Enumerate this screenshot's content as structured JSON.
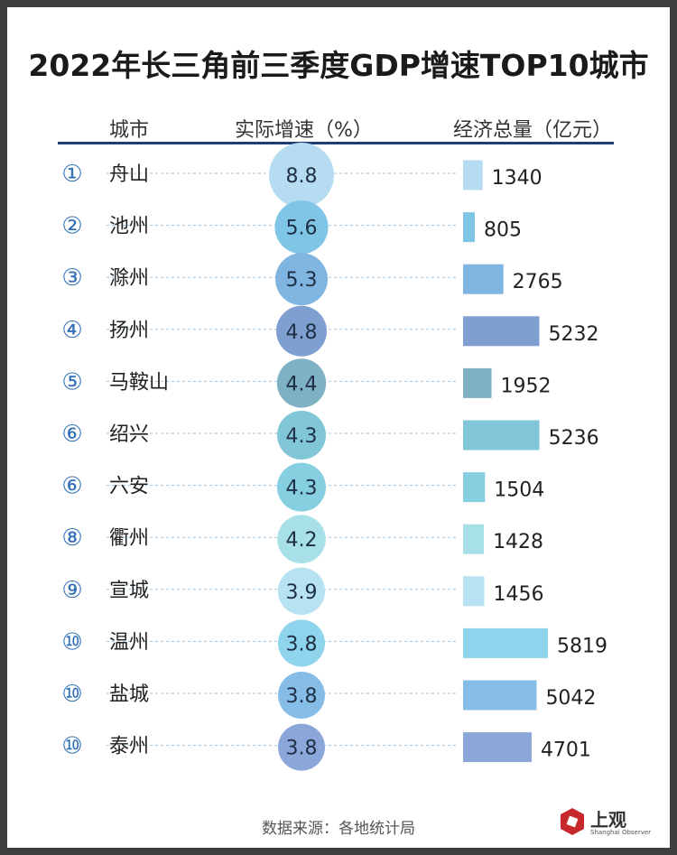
{
  "title": "2022年长三角前三季度GDP增速TOP10城市",
  "headers": {
    "city": "城市",
    "growth": "实际增速（%）",
    "gdp": "经济总量（亿元）"
  },
  "chart_data": {
    "type": "table",
    "columns": [
      "城市",
      "实际增速（%）",
      "经济总量（亿元）"
    ],
    "rows": [
      {
        "rank": "①",
        "city": "舟山",
        "growth": 8.8,
        "gdp": 1340,
        "color": "#b5dcf0"
      },
      {
        "rank": "②",
        "city": "池州",
        "growth": 5.6,
        "gdp": 805,
        "color": "#7fc5e6"
      },
      {
        "rank": "③",
        "city": "滁州",
        "growth": 5.3,
        "gdp": 2765,
        "color": "#7fb5e0"
      },
      {
        "rank": "④",
        "city": "扬州",
        "growth": 4.8,
        "gdp": 5232,
        "color": "#7f9fd1"
      },
      {
        "rank": "⑤",
        "city": "马鞍山",
        "growth": 4.4,
        "gdp": 1952,
        "color": "#7fb1c4"
      },
      {
        "rank": "⑥",
        "city": "绍兴",
        "growth": 4.3,
        "gdp": 5236,
        "color": "#80c6d6"
      },
      {
        "rank": "⑥",
        "city": "六安",
        "growth": 4.3,
        "gdp": 1504,
        "color": "#86cfe0"
      },
      {
        "rank": "⑧",
        "city": "衢州",
        "growth": 4.2,
        "gdp": 1428,
        "color": "#a7e0e6"
      },
      {
        "rank": "⑨",
        "city": "宣城",
        "growth": 3.9,
        "gdp": 1456,
        "color": "#b7e2f2"
      },
      {
        "rank": "⑩",
        "city": "温州",
        "growth": 3.8,
        "gdp": 5819,
        "color": "#8ed4ec"
      },
      {
        "rank": "⑩",
        "city": "盐城",
        "growth": 3.8,
        "gdp": 5042,
        "color": "#85bde6"
      },
      {
        "rank": "⑩",
        "city": "泰州",
        "growth": 3.8,
        "gdp": 4701,
        "color": "#8ba6d9"
      }
    ]
  },
  "source": "数据来源：各地统计局",
  "logo": {
    "name": "上观",
    "sub": "Shanghai Observer",
    "color": "#c6282b"
  },
  "rank_color": "#2e6fb7",
  "dash_color": "#9cc7e6",
  "header_line_color": "#1d3f74"
}
